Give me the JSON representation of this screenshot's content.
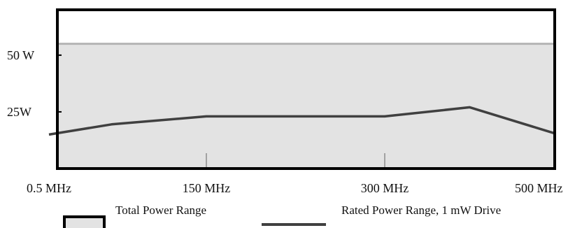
{
  "chart_data": {
    "type": "area",
    "title": "",
    "xlabel": "",
    "ylabel": "",
    "x_ticks": [
      {
        "value": 0.5,
        "label": "0.5 MHz"
      },
      {
        "value": 150,
        "label": "150 MHz"
      },
      {
        "value": 300,
        "label": "300 MHz"
      },
      {
        "value": 500,
        "label": "500 MHz"
      }
    ],
    "y_ticks": [
      {
        "value": 25,
        "label": "25W"
      },
      {
        "value": 50,
        "label": "50 W"
      }
    ],
    "xlim": [
      0.5,
      500
    ],
    "ylim": [
      0,
      70
    ],
    "grid": false,
    "legend_position": "bottom",
    "series": [
      {
        "name": "Total Power Range",
        "type": "area",
        "color": "#e3e3e3",
        "edge_color": "#b4b4b4",
        "points": [
          [
            0.5,
            55
          ],
          [
            500,
            55
          ]
        ]
      },
      {
        "name": "Rated Power Range, 1 mW Drive",
        "type": "line",
        "color": "#404040",
        "points": [
          [
            -7,
            15
          ],
          [
            55,
            19.5
          ],
          [
            150,
            23
          ],
          [
            300,
            23
          ],
          [
            400,
            27
          ],
          [
            500,
            15.5
          ]
        ]
      }
    ]
  }
}
